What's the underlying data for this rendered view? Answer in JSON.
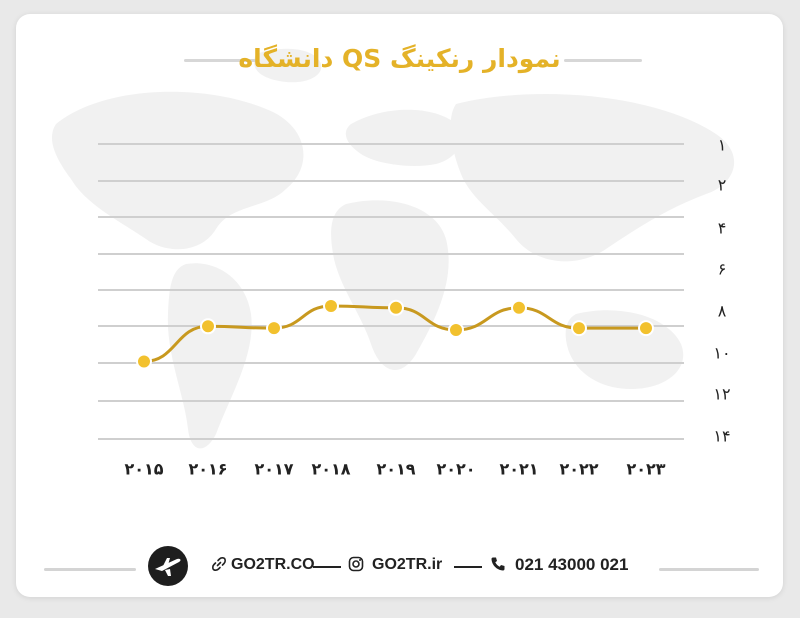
{
  "title": "نمودار رنکینگ QS دانشگاه",
  "colors": {
    "accent": "#e4b228",
    "line": "#c8991f",
    "point": "#f2c12e",
    "grid": "#cfcfcf"
  },
  "chart_data": {
    "type": "line",
    "title": "نمودار رنکینگ QS دانشگاه",
    "x_tick_labels": [
      "۲۰۱۵",
      "۲۰۱۶",
      "۲۰۱۷",
      "۲۰۱۸",
      "۲۰۱۹",
      "۲۰۲۰",
      "۲۰۲۱",
      "۲۰۲۲",
      "۲۰۲۳"
    ],
    "x": [
      2015,
      2016,
      2017,
      2018,
      2019,
      2020,
      2021,
      2022,
      2023
    ],
    "y_tick_labels": [
      "۱",
      "۲",
      "۴",
      "۶",
      "۸",
      "۱۰",
      "۱۲",
      "۱۴"
    ],
    "y_ticks": [
      1,
      2,
      4,
      6,
      8,
      10,
      12,
      14
    ],
    "series": [
      {
        "values": [
          11.7,
          9.8,
          9.9,
          8.7,
          8.8,
          10.0,
          8.8,
          9.9,
          9.9
        ]
      }
    ],
    "ylim": [
      1,
      14
    ],
    "y_inverted": true,
    "grid": true,
    "legend": "none"
  },
  "footer": {
    "website": "GO2TR.CO",
    "instagram": "GO2TR.ir",
    "phone": "021 43000 021",
    "icons": [
      "logo-plane-icon",
      "link-icon",
      "instagram-icon",
      "phone-icon"
    ]
  }
}
